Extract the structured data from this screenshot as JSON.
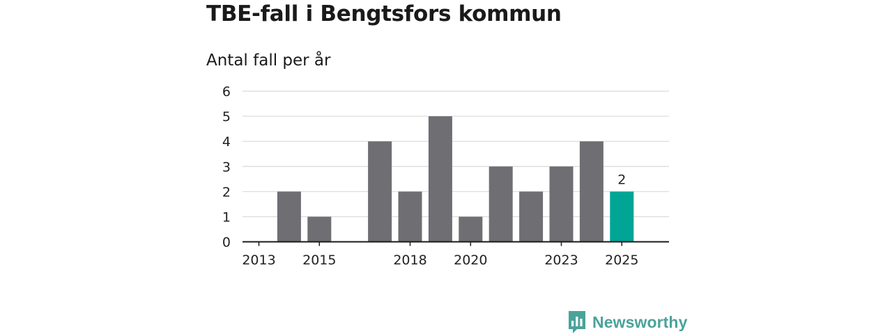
{
  "header": {
    "title": "TBE-fall i Bengtsfors kommun",
    "subtitle": "Antal fall per år"
  },
  "branding": {
    "logo_text": "Newsworthy",
    "logo_icon": "bar-chart-speech-bubble-icon",
    "color": "#4aa39a"
  },
  "colors": {
    "bar": "#6f6e73",
    "highlight": "#00a596",
    "grid": "#d9d9d9",
    "axis": "#1a1a1a"
  },
  "chart_data": {
    "type": "bar",
    "title": "TBE-fall i Bengtsfors kommun",
    "subtitle": "Antal fall per år",
    "categories": [
      "2013",
      "2014",
      "2015",
      "2016",
      "2017",
      "2018",
      "2019",
      "2020",
      "2021",
      "2022",
      "2023",
      "2024",
      "2025"
    ],
    "values": [
      0,
      2,
      1,
      0,
      4,
      2,
      5,
      1,
      3,
      2,
      3,
      4,
      2
    ],
    "x_tick_labels": [
      "2013",
      "2015",
      "2018",
      "2020",
      "2023",
      "2025"
    ],
    "y_ticks": [
      0,
      1,
      2,
      3,
      4,
      5,
      6
    ],
    "ylim": [
      0,
      6
    ],
    "highlight_category": "2025",
    "data_labels": [
      {
        "category": "2025",
        "text": "2"
      }
    ],
    "grid": true,
    "xlabel": "",
    "ylabel": ""
  }
}
